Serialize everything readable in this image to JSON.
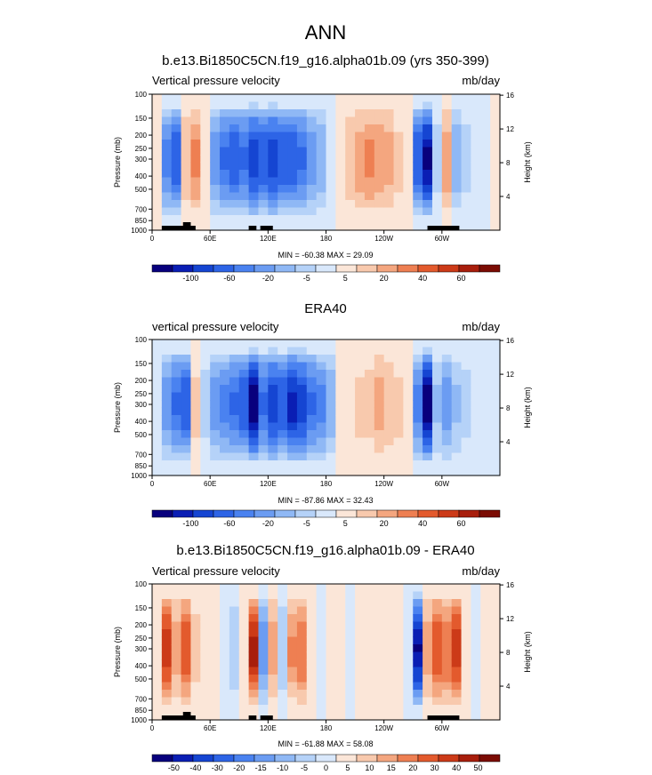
{
  "figure": {
    "main_title": "ANN"
  },
  "colors": {
    "neg": [
      "#08007d",
      "#0a1eb4",
      "#1545d2",
      "#2d64e6",
      "#4a82f0",
      "#6b9cf2",
      "#8fb8f5",
      "#b5d2f8",
      "#d9e8fb"
    ],
    "pos": [
      "#fbe6d8",
      "#f8c9ad",
      "#f4a67f",
      "#ee7f52",
      "#e35a2d",
      "#cc3a18",
      "#a81e0c",
      "#7b0c04"
    ],
    "land": "#000000"
  },
  "chart_data": [
    {
      "type": "heatmap",
      "title": "b.e13.Bi1850C5CN.f19_g16.alpha01b.09 (yrs 350-399)",
      "left_label": "Vertical pressure velocity",
      "right_label": "mb/day",
      "ylabel": "Pressure (mb)",
      "ylabel_right": "Height (km)",
      "x_ticks": [
        "0",
        "60E",
        "120E",
        "180",
        "120W",
        "60W"
      ],
      "y_ticks": [
        "100",
        "150",
        "200",
        "250",
        "300",
        "400",
        "500",
        "700",
        "850",
        "1000"
      ],
      "y_ticks_right": [
        "16",
        "12",
        "8",
        "4"
      ],
      "min_max_text": "MIN = -60.38  MAX =  29.09",
      "colorbar_ticks": [
        "-100",
        "-60",
        "-20",
        "-5",
        "5",
        "20",
        "40",
        "60"
      ],
      "land_mask": true,
      "columns": [
        {
          "lon": 0,
          "v": 5
        },
        {
          "lon": 10,
          "v": -30
        },
        {
          "lon": 20,
          "v": -40
        },
        {
          "lon": 30,
          "v": 15
        },
        {
          "lon": 40,
          "v": 25
        },
        {
          "lon": 50,
          "v": 0
        },
        {
          "lon": 60,
          "v": -25
        },
        {
          "lon": 70,
          "v": -35
        },
        {
          "lon": 80,
          "v": -40
        },
        {
          "lon": 90,
          "v": -35
        },
        {
          "lon": 100,
          "v": -45
        },
        {
          "lon": 110,
          "v": -40
        },
        {
          "lon": 120,
          "v": -45
        },
        {
          "lon": 130,
          "v": -40
        },
        {
          "lon": 140,
          "v": -40
        },
        {
          "lon": 150,
          "v": -35
        },
        {
          "lon": 160,
          "v": -25
        },
        {
          "lon": 170,
          "v": -20
        },
        {
          "lon": 180,
          "v": -5
        },
        {
          "lon": 190,
          "v": 5
        },
        {
          "lon": 200,
          "v": 15
        },
        {
          "lon": 210,
          "v": 20
        },
        {
          "lon": 220,
          "v": 25
        },
        {
          "lon": 230,
          "v": 22
        },
        {
          "lon": 240,
          "v": 18
        },
        {
          "lon": 250,
          "v": 10
        },
        {
          "lon": 260,
          "v": 3
        },
        {
          "lon": 270,
          "v": -40
        },
        {
          "lon": 280,
          "v": -55
        },
        {
          "lon": 290,
          "v": -10
        },
        {
          "lon": 300,
          "v": 20
        },
        {
          "lon": 310,
          "v": -20
        },
        {
          "lon": 320,
          "v": -10
        },
        {
          "lon": 330,
          "v": -5
        },
        {
          "lon": 340,
          "v": -3
        },
        {
          "lon": 350,
          "v": 2
        }
      ]
    },
    {
      "type": "heatmap",
      "title": "ERA40",
      "left_label": "vertical pressure velocity",
      "right_label": "mb/day",
      "ylabel": "Pressure (mb)",
      "ylabel_right": "Height (km)",
      "x_ticks": [
        "0",
        "60E",
        "120E",
        "180",
        "120W",
        "60W"
      ],
      "y_ticks": [
        "100",
        "150",
        "200",
        "250",
        "300",
        "400",
        "500",
        "700",
        "850",
        "1000"
      ],
      "y_ticks_right": [
        "16",
        "12",
        "8",
        "4"
      ],
      "min_max_text": "MIN = -87.86  MAX =  32.43",
      "colorbar_ticks": [
        "-100",
        "-60",
        "-20",
        "-5",
        "5",
        "20",
        "40",
        "60"
      ],
      "land_mask": false,
      "columns": [
        {
          "lon": 0,
          "v": -5
        },
        {
          "lon": 10,
          "v": -25
        },
        {
          "lon": 20,
          "v": -35
        },
        {
          "lon": 30,
          "v": -40
        },
        {
          "lon": 40,
          "v": 10
        },
        {
          "lon": 50,
          "v": -10
        },
        {
          "lon": 60,
          "v": -25
        },
        {
          "lon": 70,
          "v": -30
        },
        {
          "lon": 80,
          "v": -35
        },
        {
          "lon": 90,
          "v": -40
        },
        {
          "lon": 100,
          "v": -60
        },
        {
          "lon": 110,
          "v": -35
        },
        {
          "lon": 120,
          "v": -45
        },
        {
          "lon": 130,
          "v": -40
        },
        {
          "lon": 140,
          "v": -50
        },
        {
          "lon": 150,
          "v": -45
        },
        {
          "lon": 160,
          "v": -35
        },
        {
          "lon": 170,
          "v": -30
        },
        {
          "lon": 180,
          "v": -20
        },
        {
          "lon": 190,
          "v": 0
        },
        {
          "lon": 200,
          "v": 5
        },
        {
          "lon": 210,
          "v": 10
        },
        {
          "lon": 220,
          "v": 12
        },
        {
          "lon": 230,
          "v": 18
        },
        {
          "lon": 240,
          "v": 15
        },
        {
          "lon": 250,
          "v": 10
        },
        {
          "lon": 260,
          "v": 5
        },
        {
          "lon": 270,
          "v": -30
        },
        {
          "lon": 280,
          "v": -60
        },
        {
          "lon": 290,
          "v": -15
        },
        {
          "lon": 300,
          "v": -25
        },
        {
          "lon": 310,
          "v": -15
        },
        {
          "lon": 320,
          "v": -10
        },
        {
          "lon": 330,
          "v": -5
        },
        {
          "lon": 340,
          "v": -3
        },
        {
          "lon": 350,
          "v": -2
        }
      ]
    },
    {
      "type": "heatmap",
      "title": "b.e13.Bi1850C5CN.f19_g16.alpha01b.09 - ERA40",
      "left_label": "Vertical pressure velocity",
      "right_label": "mb/day",
      "ylabel": "Pressure (mb)",
      "ylabel_right": "Height (km)",
      "x_ticks": [
        "0",
        "60E",
        "120E",
        "180",
        "120W",
        "60W"
      ],
      "y_ticks": [
        "100",
        "150",
        "200",
        "250",
        "300",
        "400",
        "500",
        "700",
        "850",
        "1000"
      ],
      "y_ticks_right": [
        "16",
        "12",
        "8",
        "4"
      ],
      "min_max_text": "MIN = -61.88  MAX =  58.08",
      "colorbar_ticks": [
        "-50",
        "-40",
        "-30",
        "-20",
        "-15",
        "-10",
        "-5",
        "0",
        "5",
        "10",
        "15",
        "20",
        "30",
        "40",
        "50"
      ],
      "land_mask": true,
      "columns": [
        {
          "lon": 0,
          "v": 5
        },
        {
          "lon": 10,
          "v": 35
        },
        {
          "lon": 20,
          "v": 15
        },
        {
          "lon": 30,
          "v": 30
        },
        {
          "lon": 40,
          "v": 10
        },
        {
          "lon": 50,
          "v": 5
        },
        {
          "lon": 60,
          "v": 0
        },
        {
          "lon": 70,
          "v": -5
        },
        {
          "lon": 80,
          "v": -10
        },
        {
          "lon": 90,
          "v": 0
        },
        {
          "lon": 100,
          "v": 40
        },
        {
          "lon": 110,
          "v": -20
        },
        {
          "lon": 120,
          "v": 15
        },
        {
          "lon": 130,
          "v": -10
        },
        {
          "lon": 140,
          "v": 20
        },
        {
          "lon": 150,
          "v": 25
        },
        {
          "lon": 160,
          "v": 5
        },
        {
          "lon": 170,
          "v": -3
        },
        {
          "lon": 180,
          "v": 0
        },
        {
          "lon": 190,
          "v": 3
        },
        {
          "lon": 200,
          "v": -3
        },
        {
          "lon": 210,
          "v": 3
        },
        {
          "lon": 220,
          "v": 2
        },
        {
          "lon": 230,
          "v": 0
        },
        {
          "lon": 240,
          "v": 3
        },
        {
          "lon": 250,
          "v": 0
        },
        {
          "lon": 260,
          "v": -5
        },
        {
          "lon": 270,
          "v": -45
        },
        {
          "lon": 280,
          "v": 15
        },
        {
          "lon": 290,
          "v": 30
        },
        {
          "lon": 300,
          "v": 25
        },
        {
          "lon": 310,
          "v": 35
        },
        {
          "lon": 320,
          "v": 5
        },
        {
          "lon": 330,
          "v": -5
        },
        {
          "lon": 340,
          "v": 3
        },
        {
          "lon": 350,
          "v": 2
        }
      ]
    }
  ]
}
